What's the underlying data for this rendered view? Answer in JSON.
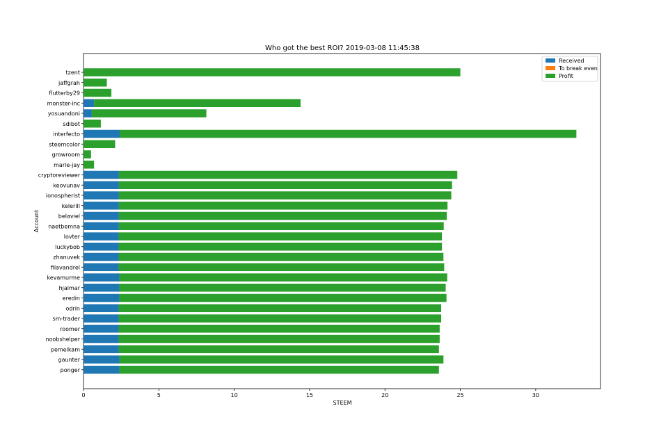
{
  "chart_data": {
    "type": "bar",
    "orientation": "horizontal",
    "stacked": true,
    "title": "Who got the best ROI? 2019-03-08 11:45:38",
    "xlabel": "STEEM",
    "ylabel": "Account",
    "xlim": [
      0,
      34.3
    ],
    "xticks": [
      0,
      5,
      10,
      15,
      20,
      25,
      30
    ],
    "grid": false,
    "legend_position": "top-right",
    "categories": [
      "tzent",
      "jaffgrah",
      "flutterby29",
      "monster-inc",
      "yosuandoni",
      "sdibot",
      "interfecto",
      "steemcolor",
      "growroom",
      "marie-jay",
      "cryptoreviewer",
      "keovunav",
      "ionospherist",
      "kelerill",
      "belaviel",
      "naetbemna",
      "lovter",
      "luckybob",
      "zhanuvek",
      "filavandrel",
      "kevamurme",
      "hjalmar",
      "eredin",
      "odrin",
      "sm-trader",
      "roomer",
      "noobshelper",
      "pemelkam",
      "gaunter",
      "ponger"
    ],
    "series": [
      {
        "name": "Received",
        "color": "#1f77b4",
        "values": [
          0,
          0,
          0,
          0.7,
          0.55,
          0,
          2.4,
          0,
          0,
          0,
          2.35,
          2.35,
          2.35,
          2.35,
          2.35,
          2.35,
          2.33,
          2.33,
          2.33,
          2.33,
          2.38,
          2.38,
          2.38,
          2.33,
          2.33,
          2.33,
          2.33,
          2.33,
          2.38,
          2.38
        ]
      },
      {
        "name": "To break even",
        "color": "#ff7f0e",
        "values": [
          0,
          0,
          0,
          0,
          0,
          0,
          0,
          0,
          0,
          0,
          0,
          0,
          0,
          0,
          0,
          0,
          0,
          0,
          0,
          0,
          0,
          0,
          0,
          0,
          0,
          0,
          0,
          0,
          0,
          0
        ]
      },
      {
        "name": "Profit",
        "color": "#2ca02c",
        "values": [
          25.0,
          1.55,
          1.85,
          13.7,
          7.6,
          1.15,
          30.3,
          2.1,
          0.5,
          0.7,
          22.45,
          22.1,
          22.05,
          21.8,
          21.75,
          21.55,
          21.45,
          21.45,
          21.55,
          21.6,
          21.75,
          21.65,
          21.7,
          21.4,
          21.4,
          21.3,
          21.3,
          21.25,
          21.5,
          21.2
        ]
      }
    ]
  }
}
